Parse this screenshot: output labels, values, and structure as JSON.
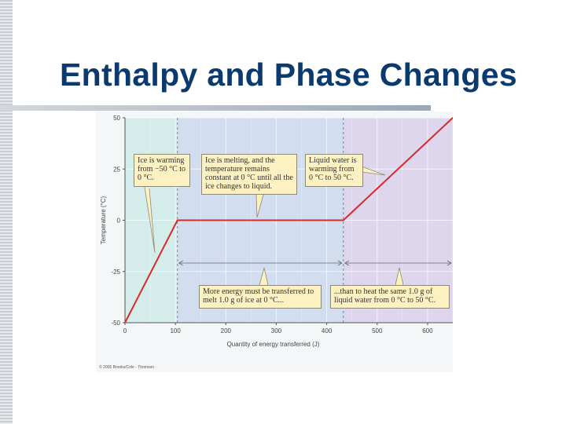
{
  "slide": {
    "title": "Enthalpy and Phase Changes",
    "copyright": "© 2005 Brooks/Cole - Thomson"
  },
  "colors": {
    "title": "#0b3a6e",
    "line": "#d62b2b",
    "region_solid": "#d4ecea",
    "region_melting": "#d2ddf0",
    "region_liquid": "#ddd6ec",
    "callout_bg": "#fdf1c2"
  },
  "callouts": {
    "ice_warming": "Ice is warming from −50 °C to 0 °C.",
    "ice_melting": "Ice is melting, and the temperature remains constant at 0 °C until all the ice changes to liquid.",
    "water_warming": "Liquid water is warming from 0 °C to 50 °C.",
    "more_energy": "More energy must be transferred to melt 1.0 g of ice at 0 °C...",
    "than_heat": "...than to heat the same 1.0 g of liquid water from 0 °C to 50 °C."
  },
  "chart_data": {
    "type": "line",
    "title": "",
    "xlabel": "Quantity of energy transferred (J)",
    "ylabel": "Temperature (°C)",
    "xlim": [
      0,
      650
    ],
    "ylim": [
      -50,
      50
    ],
    "xticks": [
      0,
      100,
      200,
      300,
      400,
      500,
      600
    ],
    "yticks": [
      -50,
      -25,
      0,
      25,
      50
    ],
    "series": [
      {
        "x": [
          0,
          104,
          433,
          650
        ],
        "y": [
          -50,
          0,
          0,
          50
        ]
      }
    ],
    "regions": [
      [
        0,
        104
      ],
      [
        104,
        433
      ],
      [
        433,
        650
      ]
    ],
    "grid": true
  }
}
